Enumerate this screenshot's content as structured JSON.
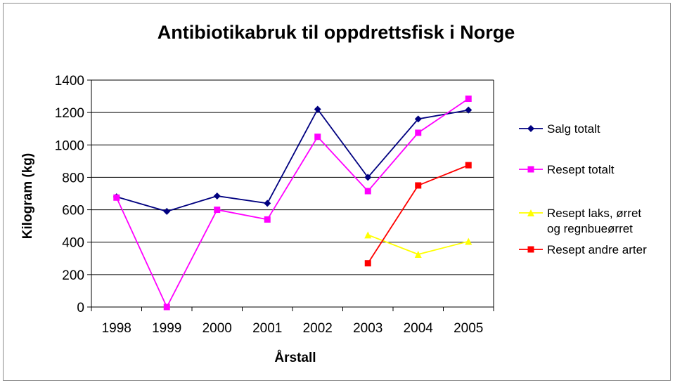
{
  "chart_data": {
    "type": "line",
    "title": "Antibiotikabruk til oppdrettsfisk i Norge",
    "xlabel": "Årstall",
    "ylabel": "Kilogram (kg)",
    "categories": [
      "1998",
      "1999",
      "2000",
      "2001",
      "2002",
      "2003",
      "2004",
      "2005"
    ],
    "ylim": [
      0,
      1400
    ],
    "yticks": [
      0,
      200,
      400,
      600,
      800,
      1000,
      1200,
      1400
    ],
    "grid": true,
    "legend_position": "right",
    "series": [
      {
        "name": "Salg totalt",
        "color": "#000080",
        "marker": "diamond",
        "values": [
          680,
          590,
          685,
          640,
          1220,
          800,
          1160,
          1215
        ]
      },
      {
        "name": "Resept totalt",
        "color": "#ff00ff",
        "marker": "square",
        "values": [
          675,
          0,
          600,
          540,
          1050,
          715,
          1075,
          1285
        ]
      },
      {
        "name": "Resept laks, ørret og regnbueørret",
        "legend_lines": [
          "Resept laks, ørret",
          "og regnbueørret"
        ],
        "color": "#ffff00",
        "marker": "triangle",
        "values": [
          null,
          null,
          null,
          null,
          null,
          445,
          325,
          405
        ]
      },
      {
        "name": "Resept andre arter",
        "color": "#ff0000",
        "marker": "square",
        "values": [
          null,
          null,
          null,
          null,
          null,
          270,
          750,
          875
        ]
      }
    ]
  }
}
